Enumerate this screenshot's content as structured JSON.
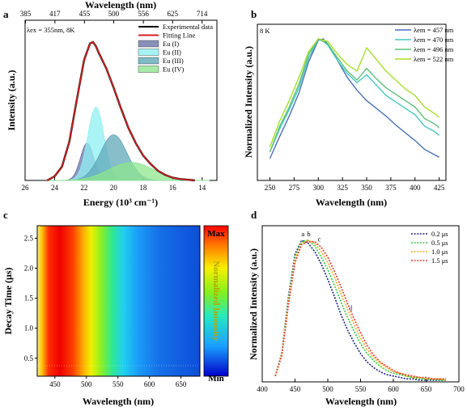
{
  "panels": [
    {
      "label": "a"
    },
    {
      "label": "b"
    },
    {
      "label": "c"
    },
    {
      "label": "d"
    }
  ],
  "chart_data": [
    {
      "panel": "a",
      "type": "area",
      "xlabel": "Energy (10³ cm⁻¹)",
      "top_xlabel": "Wavelength (nm)",
      "ylabel": "Intensity (a.u.)",
      "annotation": "λex = 355nm, 8K",
      "xlim": [
        26,
        13
      ],
      "x_ticks": [
        26,
        24,
        22,
        20,
        18,
        16,
        14
      ],
      "top_ticks": [
        385,
        417,
        455,
        500,
        556,
        625,
        714
      ],
      "series": [
        {
          "name": "Experimental data",
          "kind": "line",
          "color": "#000000",
          "x": [
            24.5,
            24.0,
            23.5,
            23.0,
            22.5,
            22.0,
            21.6,
            21.4,
            21.2,
            21.0,
            20.5,
            20.0,
            19.5,
            19.0,
            18.5,
            18.0,
            17.5,
            17.0,
            16.5,
            16.0,
            15.5,
            15.0,
            14.5
          ],
          "y": [
            0.0,
            0.03,
            0.1,
            0.28,
            0.58,
            0.87,
            0.99,
            1.0,
            0.97,
            0.92,
            0.81,
            0.67,
            0.52,
            0.38,
            0.27,
            0.18,
            0.12,
            0.07,
            0.04,
            0.02,
            0.01,
            0.005,
            0.0
          ]
        },
        {
          "name": "Fitting Line",
          "kind": "line",
          "color": "#d62020",
          "x": [
            24.5,
            24.0,
            23.5,
            23.0,
            22.5,
            22.0,
            21.6,
            21.4,
            21.2,
            21.0,
            20.5,
            20.0,
            19.5,
            19.0,
            18.5,
            18.0,
            17.5,
            17.0,
            16.5,
            16.0,
            15.5,
            15.0,
            14.5
          ],
          "y": [
            0.0,
            0.03,
            0.1,
            0.28,
            0.58,
            0.87,
            0.99,
            1.0,
            0.97,
            0.92,
            0.81,
            0.67,
            0.52,
            0.38,
            0.27,
            0.18,
            0.12,
            0.07,
            0.04,
            0.02,
            0.01,
            0.005,
            0.0
          ]
        },
        {
          "name": "Eu (I)",
          "kind": "band",
          "color": "#6b74a8",
          "center": 21.8,
          "width": 0.45,
          "height": 0.27
        },
        {
          "name": "Eu (II)",
          "kind": "band",
          "color": "#8ff0f3",
          "center": 21.2,
          "width": 0.55,
          "height": 0.53
        },
        {
          "name": "Eu (III)",
          "kind": "band",
          "color": "#5fa8b8",
          "center": 20.0,
          "width": 0.9,
          "height": 0.33
        },
        {
          "name": "Eu (IV)",
          "kind": "band",
          "color": "#8ee58e",
          "center": 18.8,
          "width": 1.5,
          "height": 0.13
        }
      ]
    },
    {
      "panel": "b",
      "type": "line",
      "xlabel": "Wavelength (nm)",
      "ylabel": "Normalized Intensity (a.u.)",
      "annotation": "8 K",
      "xlim": [
        237,
        432
      ],
      "x_ticks": [
        250,
        275,
        300,
        325,
        350,
        375,
        400,
        425
      ],
      "ylim": [
        0,
        1.05
      ],
      "series": [
        {
          "name": "λem = 457 nm",
          "color": "#4a72b8",
          "x": [
            250,
            260,
            270,
            280,
            290,
            300,
            305,
            310,
            320,
            330,
            340,
            350,
            360,
            370,
            380,
            390,
            400,
            410,
            420,
            425
          ],
          "y": [
            0.07,
            0.24,
            0.4,
            0.58,
            0.82,
            0.99,
            1.0,
            0.96,
            0.83,
            0.7,
            0.6,
            0.52,
            0.46,
            0.4,
            0.33,
            0.27,
            0.21,
            0.14,
            0.1,
            0.08
          ]
        },
        {
          "name": "λem = 470 nm",
          "color": "#45c8c0",
          "x": [
            250,
            260,
            270,
            280,
            290,
            300,
            305,
            310,
            320,
            330,
            340,
            350,
            360,
            370,
            380,
            390,
            400,
            410,
            420,
            425
          ],
          "y": [
            0.12,
            0.3,
            0.45,
            0.62,
            0.85,
            1.0,
            0.98,
            0.95,
            0.83,
            0.73,
            0.66,
            0.72,
            0.64,
            0.56,
            0.51,
            0.46,
            0.41,
            0.32,
            0.28,
            0.25
          ]
        },
        {
          "name": "λem = 496 nm",
          "color": "#5fbf7a",
          "x": [
            250,
            260,
            270,
            280,
            290,
            300,
            305,
            310,
            320,
            330,
            340,
            350,
            360,
            370,
            380,
            390,
            400,
            410,
            420,
            425
          ],
          "y": [
            0.12,
            0.32,
            0.47,
            0.65,
            0.88,
            1.0,
            0.98,
            0.96,
            0.85,
            0.75,
            0.68,
            0.77,
            0.69,
            0.62,
            0.57,
            0.52,
            0.47,
            0.38,
            0.34,
            0.31
          ]
        },
        {
          "name": "λem = 522 nm",
          "color": "#a6e02c",
          "x": [
            250,
            260,
            270,
            280,
            290,
            300,
            305,
            310,
            320,
            330,
            340,
            350,
            360,
            370,
            380,
            390,
            400,
            410,
            420,
            425
          ],
          "y": [
            0.16,
            0.36,
            0.52,
            0.7,
            0.9,
            1.0,
            0.99,
            0.98,
            0.88,
            0.8,
            0.75,
            0.93,
            0.84,
            0.75,
            0.68,
            0.61,
            0.56,
            0.47,
            0.42,
            0.39
          ]
        }
      ]
    },
    {
      "panel": "c",
      "type": "heatmap",
      "xlabel": "Wavelength (nm)",
      "ylabel": "Decay Time (μs)",
      "xlim": [
        422,
        680
      ],
      "ylim": [
        0.2,
        2.6
      ],
      "x_ticks": [
        450,
        500,
        550,
        600,
        650
      ],
      "y_ticks": [
        0.5,
        1.0,
        1.5,
        2.0,
        2.5
      ],
      "colorbar": {
        "label": "Normalized Intensity",
        "max_label": "Max",
        "min_label": "Min"
      },
      "peak_wavelength": 475
    },
    {
      "panel": "d",
      "type": "line",
      "xlabel": "Wavelength (nm)",
      "ylabel": "Normalized Intensity (a.u.)",
      "xlim": [
        400,
        700
      ],
      "x_ticks": [
        400,
        450,
        500,
        550,
        600,
        650,
        700
      ],
      "ylim": [
        0,
        1.08
      ],
      "point_labels": [
        "a",
        "b",
        "c",
        "d"
      ],
      "series": [
        {
          "name": "0.2 μs",
          "color": "#1a237e",
          "x": [
            420,
            430,
            440,
            450,
            460,
            470,
            480,
            490,
            500,
            510,
            520,
            530,
            540,
            550,
            560,
            570,
            580,
            590,
            600,
            610,
            620,
            630,
            640,
            650,
            660,
            670,
            680
          ],
          "y": [
            0.03,
            0.2,
            0.6,
            0.9,
            1.0,
            0.98,
            0.92,
            0.83,
            0.72,
            0.6,
            0.47,
            0.36,
            0.27,
            0.19,
            0.13,
            0.09,
            0.06,
            0.04,
            0.03,
            0.02,
            0.01,
            0.01,
            0.0,
            0.0,
            0.0,
            0.0,
            0.0
          ]
        },
        {
          "name": "0.5 μs",
          "color": "#2ecc40",
          "x": [
            420,
            430,
            440,
            450,
            460,
            470,
            480,
            490,
            500,
            510,
            520,
            530,
            540,
            550,
            560,
            570,
            580,
            590,
            600,
            610,
            620,
            630,
            640,
            650,
            660,
            670,
            680
          ],
          "y": [
            0.03,
            0.2,
            0.58,
            0.88,
            0.99,
            1.0,
            0.96,
            0.88,
            0.79,
            0.68,
            0.56,
            0.45,
            0.35,
            0.26,
            0.19,
            0.14,
            0.1,
            0.07,
            0.05,
            0.04,
            0.03,
            0.02,
            0.01,
            0.01,
            0.01,
            0.0,
            0.0
          ]
        },
        {
          "name": "1.0 μs",
          "color": "#f5a623",
          "x": [
            420,
            430,
            440,
            450,
            460,
            470,
            480,
            490,
            500,
            510,
            520,
            530,
            540,
            550,
            560,
            570,
            580,
            590,
            600,
            610,
            620,
            630,
            640,
            650,
            660,
            670,
            680
          ],
          "y": [
            0.03,
            0.19,
            0.56,
            0.86,
            0.98,
            1.0,
            0.98,
            0.92,
            0.84,
            0.74,
            0.62,
            0.51,
            0.4,
            0.3,
            0.22,
            0.16,
            0.12,
            0.09,
            0.06,
            0.05,
            0.03,
            0.02,
            0.02,
            0.01,
            0.01,
            0.01,
            0.0
          ]
        },
        {
          "name": "1.5 μs",
          "color": "#e23b2e",
          "x": [
            420,
            430,
            440,
            450,
            460,
            470,
            480,
            490,
            500,
            510,
            520,
            530,
            540,
            550,
            560,
            570,
            580,
            590,
            600,
            610,
            620,
            630,
            640,
            650,
            660,
            670,
            680
          ],
          "y": [
            0.03,
            0.18,
            0.54,
            0.84,
            0.97,
            0.99,
            0.99,
            0.95,
            0.88,
            0.78,
            0.67,
            0.55,
            0.44,
            0.34,
            0.25,
            0.18,
            0.13,
            0.1,
            0.07,
            0.05,
            0.04,
            0.03,
            0.02,
            0.02,
            0.01,
            0.01,
            0.01
          ]
        }
      ]
    }
  ]
}
